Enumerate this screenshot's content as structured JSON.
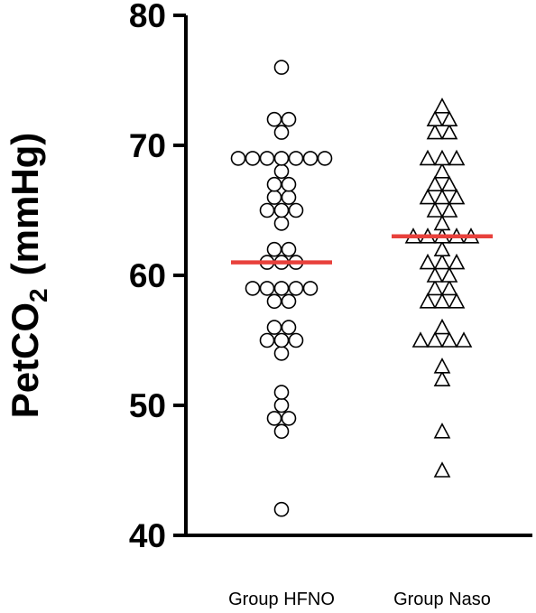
{
  "chart_data": {
    "type": "scatter",
    "subtype": "dot-plot",
    "ylabel": "PetCO",
    "ylabel_subscript": "2",
    "ylabel_unit": "(mmHg)",
    "ylim": [
      40,
      80
    ],
    "yticks": [
      40,
      50,
      60,
      70,
      80
    ],
    "categories": [
      "Group HFNO",
      "Group Naso"
    ],
    "median_color": "#e8413c",
    "series": [
      {
        "category": "Group HFNO",
        "marker": "circle",
        "median": 61,
        "values": [
          76,
          72,
          72,
          71,
          69,
          69,
          69,
          69,
          69,
          69,
          69,
          68,
          67,
          67,
          66,
          66,
          65,
          65,
          65,
          64,
          62,
          62,
          61,
          61,
          61,
          59,
          59,
          59,
          59,
          59,
          58,
          58,
          56,
          56,
          55,
          55,
          55,
          54,
          51,
          50,
          49,
          49,
          48,
          42
        ]
      },
      {
        "category": "Group Naso",
        "marker": "triangle",
        "median": 63,
        "values": [
          73,
          72,
          72,
          71,
          71,
          69,
          69,
          69,
          68,
          67,
          67,
          66,
          66,
          66,
          65,
          65,
          64,
          63,
          63,
          63,
          63,
          63,
          62,
          61,
          61,
          61,
          60,
          60,
          59,
          59,
          58,
          58,
          58,
          56,
          55,
          55,
          55,
          55,
          53,
          52,
          48,
          45
        ]
      }
    ]
  }
}
